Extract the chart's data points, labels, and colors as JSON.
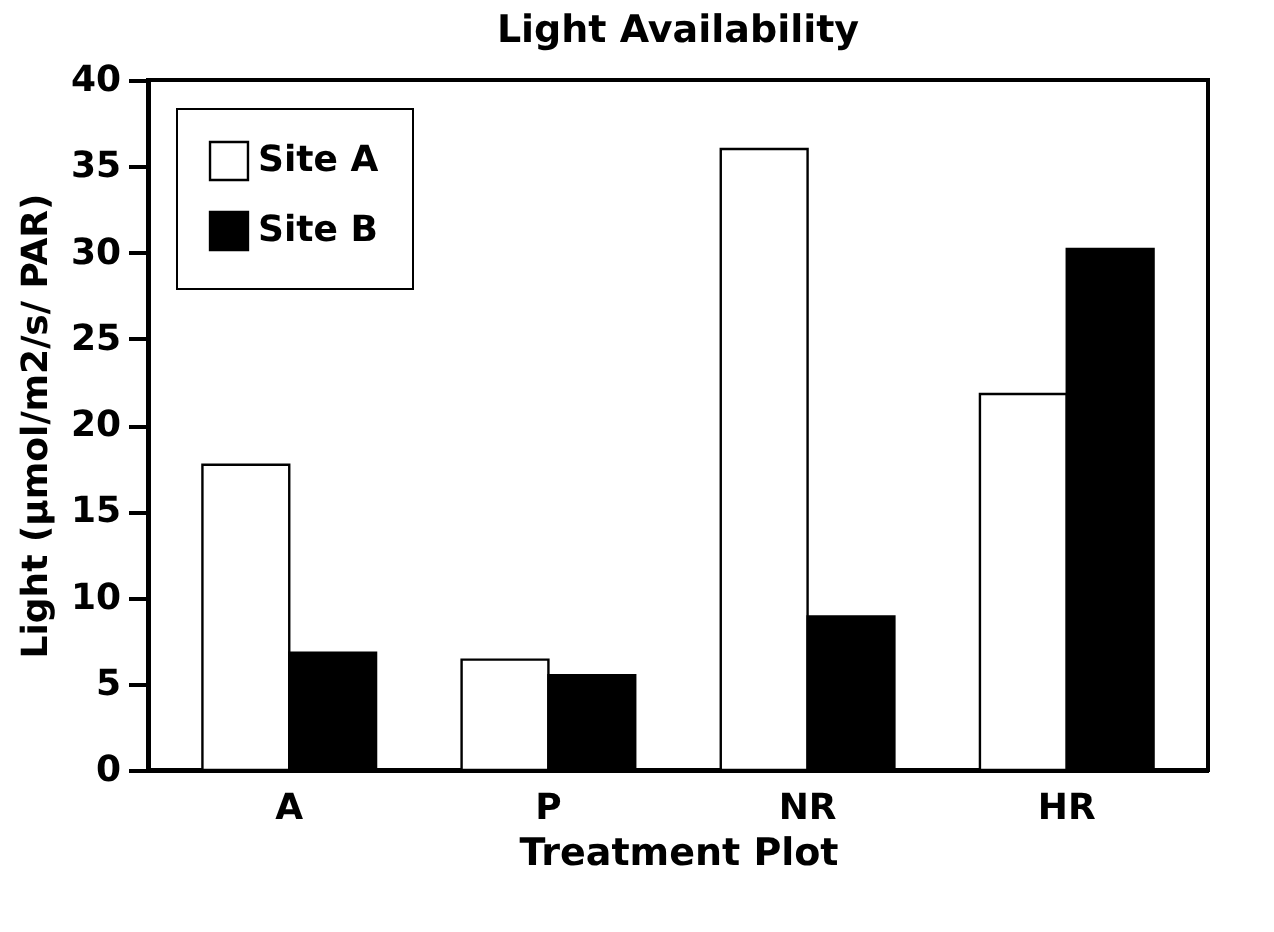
{
  "chart_data": {
    "type": "bar",
    "title": "Light Availability",
    "xlabel": "Treatment Plot",
    "ylabel": "Light (μmol/m2/s/ PAR)",
    "categories": [
      "A",
      "P",
      "NR",
      "HR"
    ],
    "series": [
      {
        "name": "Site A",
        "color": "#ffffff",
        "values": [
          17.7,
          6.4,
          36,
          21.8
        ]
      },
      {
        "name": "Site B",
        "color": "#000000",
        "values": [
          6.8,
          5.5,
          8.9,
          30.2
        ]
      }
    ],
    "ylim": [
      0,
      40
    ],
    "yticks": [
      0,
      5,
      10,
      15,
      20,
      25,
      30,
      35,
      40
    ],
    "grid": false,
    "legend": "top left"
  }
}
